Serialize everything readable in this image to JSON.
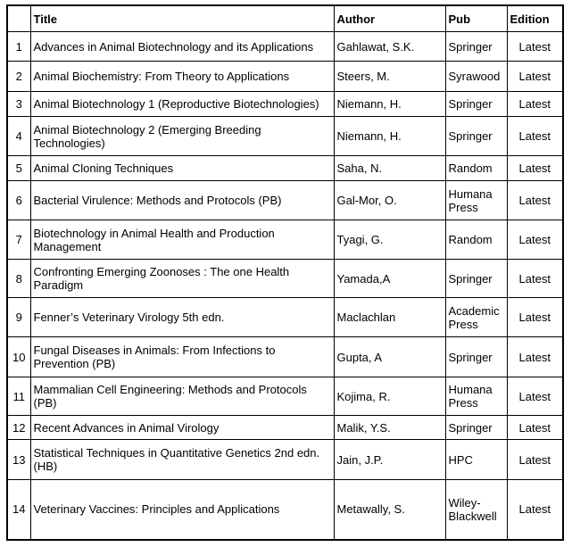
{
  "table": {
    "columns": [
      {
        "key": "num",
        "label": ""
      },
      {
        "key": "title",
        "label": "Title"
      },
      {
        "key": "author",
        "label": "Author"
      },
      {
        "key": "pub",
        "label": "Pub"
      },
      {
        "key": "edition",
        "label": "Edition"
      }
    ],
    "rows": [
      {
        "num": "1",
        "title": "Advances in Animal Biotechnology and its Applications",
        "author": "Gahlawat, S.K.",
        "pub": "Springer",
        "edition": "Latest"
      },
      {
        "num": "2",
        "title": "Animal Biochemistry: From Theory to Applications",
        "author": "Steers, M.",
        "pub": "Syrawood",
        "edition": "Latest"
      },
      {
        "num": "3",
        "title": "Animal Biotechnology 1 (Reproductive Biotechnologies)",
        "author": "Niemann, H.",
        "pub": "Springer",
        "edition": "Latest"
      },
      {
        "num": "4",
        "title": "Animal Biotechnology 2 (Emerging Breeding Technologies)",
        "author": "Niemann, H.",
        "pub": "Springer",
        "edition": "Latest"
      },
      {
        "num": "5",
        "title": "Animal Cloning Techniques",
        "author": "Saha, N.",
        "pub": "Random",
        "edition": "Latest"
      },
      {
        "num": "6",
        "title": "Bacterial Virulence: Methods and Protocols (PB)",
        "author": "Gal-Mor, O.",
        "pub": "Humana Press",
        "edition": "Latest"
      },
      {
        "num": "7",
        "title": "Biotechnology in Animal Health and Production Management",
        "author": "Tyagi, G.",
        "pub": "Random",
        "edition": "Latest"
      },
      {
        "num": "8",
        "title": "Confronting Emerging Zoonoses : The one Health Paradigm",
        "author": "Yamada,A",
        "pub": "Springer",
        "edition": "Latest"
      },
      {
        "num": "9",
        "title": "Fenner’s Veterinary Virology 5th edn.",
        "author": "Maclachlan",
        "pub": "Academic Press",
        "edition": "Latest"
      },
      {
        "num": "10",
        "title": "Fungal Diseases in Animals: From Infections to Prevention (PB)",
        "author": "Gupta, A",
        "pub": "Springer",
        "edition": "Latest"
      },
      {
        "num": "11",
        "title": "Mammalian Cell Engineering: Methods and Protocols (PB)",
        "author": "Kojima, R.",
        "pub": "Humana Press",
        "edition": "Latest"
      },
      {
        "num": "12",
        "title": "Recent Advances in Animal Virology",
        "author": "Malik, Y.S.",
        "pub": "Springer",
        "edition": "Latest"
      },
      {
        "num": "13",
        "title": "Statistical Techniques in Quantitative Genetics 2nd edn. (HB)",
        "author": "Jain, J.P.",
        "pub": "HPC",
        "edition": "Latest"
      },
      {
        "num": "14",
        "title": "Veterinary Vaccines: Principles and Applications",
        "author": "Metawally, S.",
        "pub": "Wiley-Blackwell",
        "edition": "Latest"
      }
    ]
  }
}
